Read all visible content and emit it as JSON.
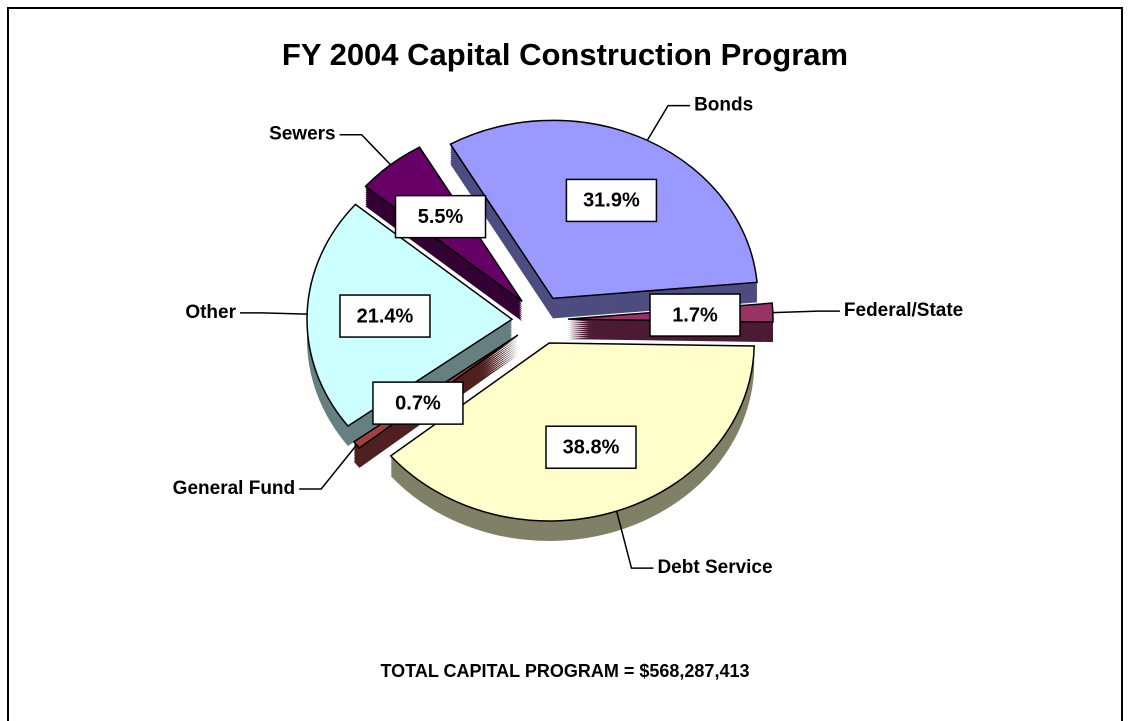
{
  "chart_data": {
    "type": "pie",
    "title": "FY 2004 Capital Construction Program",
    "categories": [
      "Bonds",
      "Federal/State",
      "Debt Service",
      "General Fund",
      "Other",
      "Sewers"
    ],
    "values": [
      31.9,
      1.7,
      38.8,
      0.7,
      21.4,
      5.5
    ],
    "value_labels": [
      "31.9%",
      "1.7%",
      "38.8%",
      "0.7%",
      "21.4%",
      "5.5%"
    ],
    "colors": [
      "#9999ff",
      "#993366",
      "#ffffcc",
      "#a04040",
      "#ccffff",
      "#660066"
    ],
    "annotation": "TOTAL CAPITAL PROGRAM = $568,287,413"
  }
}
